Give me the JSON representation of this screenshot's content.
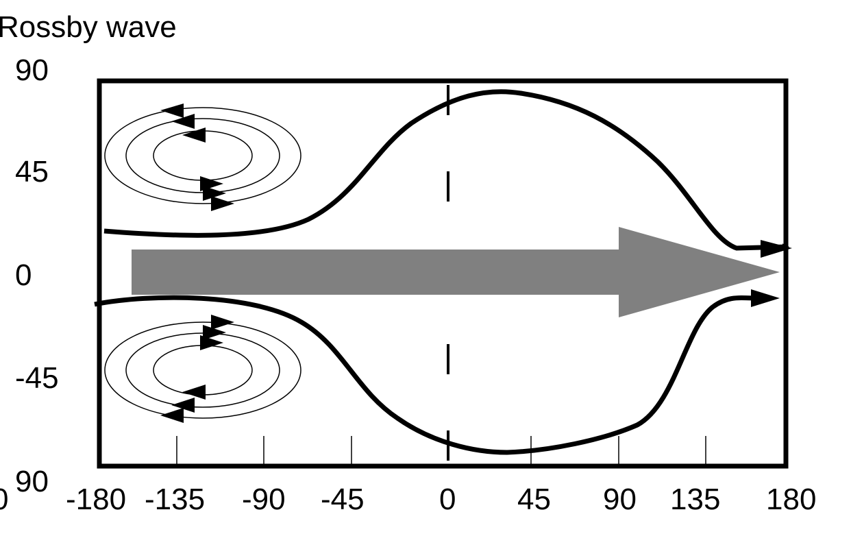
{
  "title": "Rossby wave",
  "y_ticks": [
    "90",
    "45",
    "0",
    "-45",
    "90"
  ],
  "x_left_clipped": "0",
  "x_ticks": [
    "-180",
    "-135",
    "-90",
    "-45",
    "0",
    "45",
    "90",
    "135",
    "180"
  ],
  "colors": {
    "line": "#000000",
    "flow_arrow": "#808080",
    "background": "#ffffff"
  },
  "icons": {
    "vortex_north": "counter-clockwise-circulation-icon",
    "vortex_south": "clockwise-circulation-icon",
    "flow": "eastward-flow-arrow-icon"
  }
}
